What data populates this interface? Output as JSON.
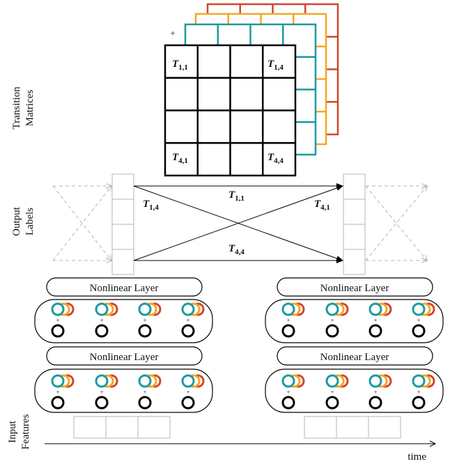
{
  "side_labels": {
    "transition_matrices": [
      "Transition",
      "Matrices"
    ],
    "output_labels": [
      "Output",
      "Labels"
    ],
    "input_features": [
      "Input",
      "Features"
    ]
  },
  "matrix": {
    "plus_sign": "+",
    "cells": {
      "t11": {
        "base": "T",
        "sub": "1,1"
      },
      "t14": {
        "base": "T",
        "sub": "1,4"
      },
      "t41": {
        "base": "T",
        "sub": "4,1"
      },
      "t44": {
        "base": "T",
        "sub": "4,4"
      }
    }
  },
  "transitions": {
    "t11": {
      "base": "T",
      "sub": "1,1"
    },
    "t14": {
      "base": "T",
      "sub": "1,4"
    },
    "t41": {
      "base": "T",
      "sub": "4,1"
    },
    "t44": {
      "base": "T",
      "sub": "4,4"
    }
  },
  "layers": {
    "nonlinear_label": "Nonlinear Layer",
    "plus_sign": "+"
  },
  "time_axis": {
    "label": "time"
  },
  "colors": {
    "black": "#000000",
    "teal": "#1a9aa0",
    "orange": "#f5a623",
    "red": "#d0472b",
    "gray": "#b4b4b4"
  }
}
